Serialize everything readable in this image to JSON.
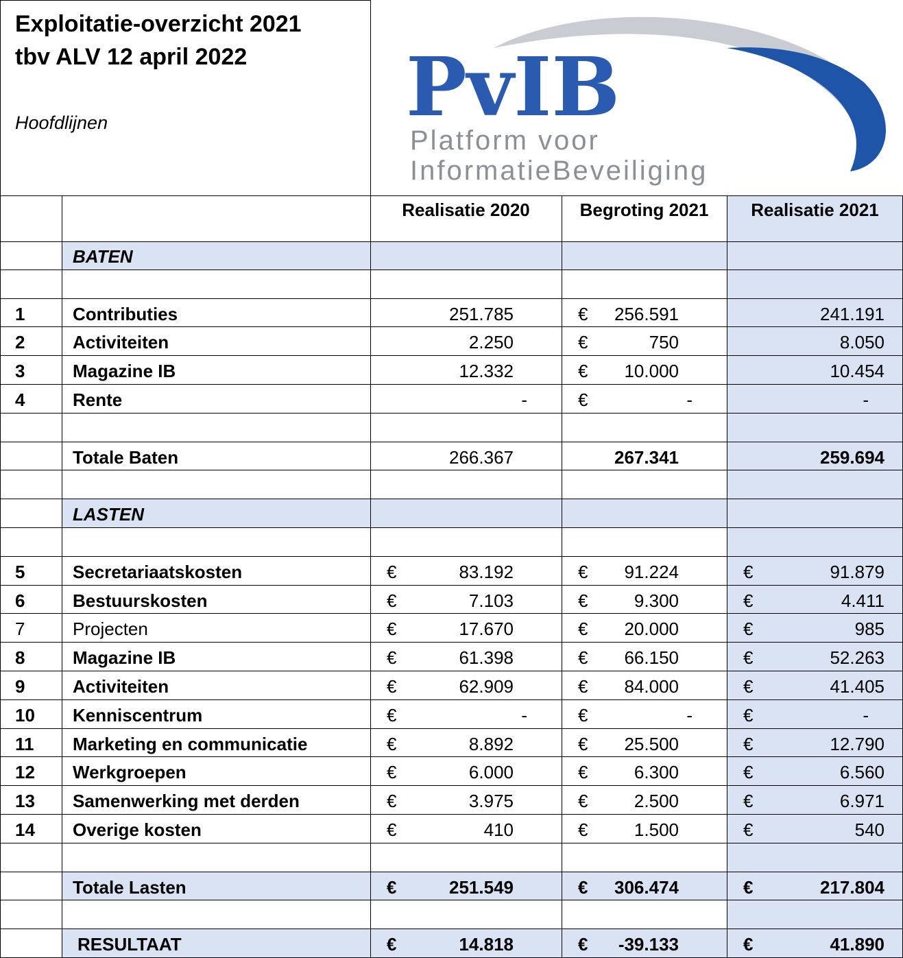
{
  "header": {
    "title": [
      "Exploitatie-overzicht 2021",
      "tbv ALV 12 april 2022"
    ],
    "subtitle": "Hoofdlijnen",
    "logo": {
      "mark": "PvIB",
      "line1": "Platform voor",
      "line2": "InformatieBeveiliging"
    }
  },
  "table": {
    "columns": [
      "Realisatie 2020",
      "Begroting 2021",
      "Realisatie 2021"
    ],
    "rows": [
      {
        "label": "BATEN"
      },
      null,
      {
        "num": "1",
        "label": "Contributies",
        "cells": [
          {
            "value": "251.785"
          },
          {
            "currency": "€",
            "value": "256.591"
          },
          {
            "value": "241.191"
          }
        ]
      },
      {
        "num": "2",
        "label": "Activiteiten",
        "cells": [
          {
            "value": "2.250"
          },
          {
            "currency": "€",
            "value": "750"
          },
          {
            "value": "8.050"
          }
        ]
      },
      {
        "num": "3",
        "label": "Magazine IB",
        "cells": [
          {
            "value": "12.332"
          },
          {
            "currency": "€",
            "value": "10.000"
          },
          {
            "value": "10.454"
          }
        ]
      },
      {
        "num": "4",
        "label": "Rente",
        "cells": [
          {
            "value": "-"
          },
          {
            "currency": "€",
            "value": "-"
          },
          {
            "value": "-"
          }
        ]
      },
      null,
      {
        "label": "Totale Baten",
        "cells": [
          {
            "value": "266.367"
          },
          {
            "value": "267.341"
          },
          {
            "value": "259.694"
          }
        ]
      },
      null,
      {
        "label": "LASTEN"
      },
      null,
      {
        "num": "5",
        "label": "Secretariaatskosten",
        "cells": [
          {
            "currency": "€",
            "value": "83.192"
          },
          {
            "currency": "€",
            "value": "91.224"
          },
          {
            "currency": "€",
            "value": "91.879"
          }
        ]
      },
      {
        "num": "6",
        "label": "Bestuurskosten",
        "cells": [
          {
            "currency": "€",
            "value": "7.103"
          },
          {
            "currency": "€",
            "value": "9.300"
          },
          {
            "currency": "€",
            "value": "4.411"
          }
        ]
      },
      {
        "num": "7",
        "label": "Projecten",
        "cells": [
          {
            "currency": "€",
            "value": "17.670"
          },
          {
            "currency": "€",
            "value": "20.000"
          },
          {
            "currency": "€",
            "value": "985"
          }
        ]
      },
      {
        "num": "8",
        "label": "Magazine IB",
        "cells": [
          {
            "currency": "€",
            "value": "61.398"
          },
          {
            "currency": "€",
            "value": "66.150"
          },
          {
            "currency": "€",
            "value": "52.263"
          }
        ]
      },
      {
        "num": "9",
        "label": "Activiteiten",
        "cells": [
          {
            "currency": "€",
            "value": "62.909"
          },
          {
            "currency": "€",
            "value": "84.000"
          },
          {
            "currency": "€",
            "value": "41.405"
          }
        ]
      },
      {
        "num": "10",
        "label": "Kenniscentrum",
        "cells": [
          {
            "currency": "€",
            "value": "-"
          },
          {
            "currency": "€",
            "value": "-"
          },
          {
            "currency": "€",
            "value": "-"
          }
        ]
      },
      {
        "num": "11",
        "label": "Marketing en communicatie",
        "cells": [
          {
            "currency": "€",
            "value": "8.892"
          },
          {
            "currency": "€",
            "value": "25.500"
          },
          {
            "currency": "€",
            "value": "12.790"
          }
        ]
      },
      {
        "num": "12",
        "label": "Werkgroepen",
        "cells": [
          {
            "currency": "€",
            "value": "6.000"
          },
          {
            "currency": "€",
            "value": "6.300"
          },
          {
            "currency": "€",
            "value": "6.560"
          }
        ]
      },
      {
        "num": "13",
        "label": "Samenwerking met derden",
        "cells": [
          {
            "currency": "€",
            "value": "3.975"
          },
          {
            "currency": "€",
            "value": "2.500"
          },
          {
            "currency": "€",
            "value": "6.971"
          }
        ]
      },
      {
        "num": "14",
        "label": "Overige kosten",
        "cells": [
          {
            "currency": "€",
            "value": "410"
          },
          {
            "currency": "€",
            "value": "1.500"
          },
          {
            "currency": "€",
            "value": "540"
          }
        ]
      },
      null,
      {
        "label": "Totale Lasten",
        "cells": [
          {
            "currency": "€",
            "value": "251.549"
          },
          {
            "currency": "€",
            "value": "306.474"
          },
          {
            "currency": "€",
            "value": "217.804"
          }
        ]
      },
      null,
      {
        "label": "RESULTAAT",
        "cells": [
          {
            "currency": "€",
            "value": "14.818"
          },
          {
            "currency": "€",
            "value": "-39.133"
          },
          {
            "currency": "€",
            "value": "41.890"
          }
        ]
      }
    ]
  }
}
